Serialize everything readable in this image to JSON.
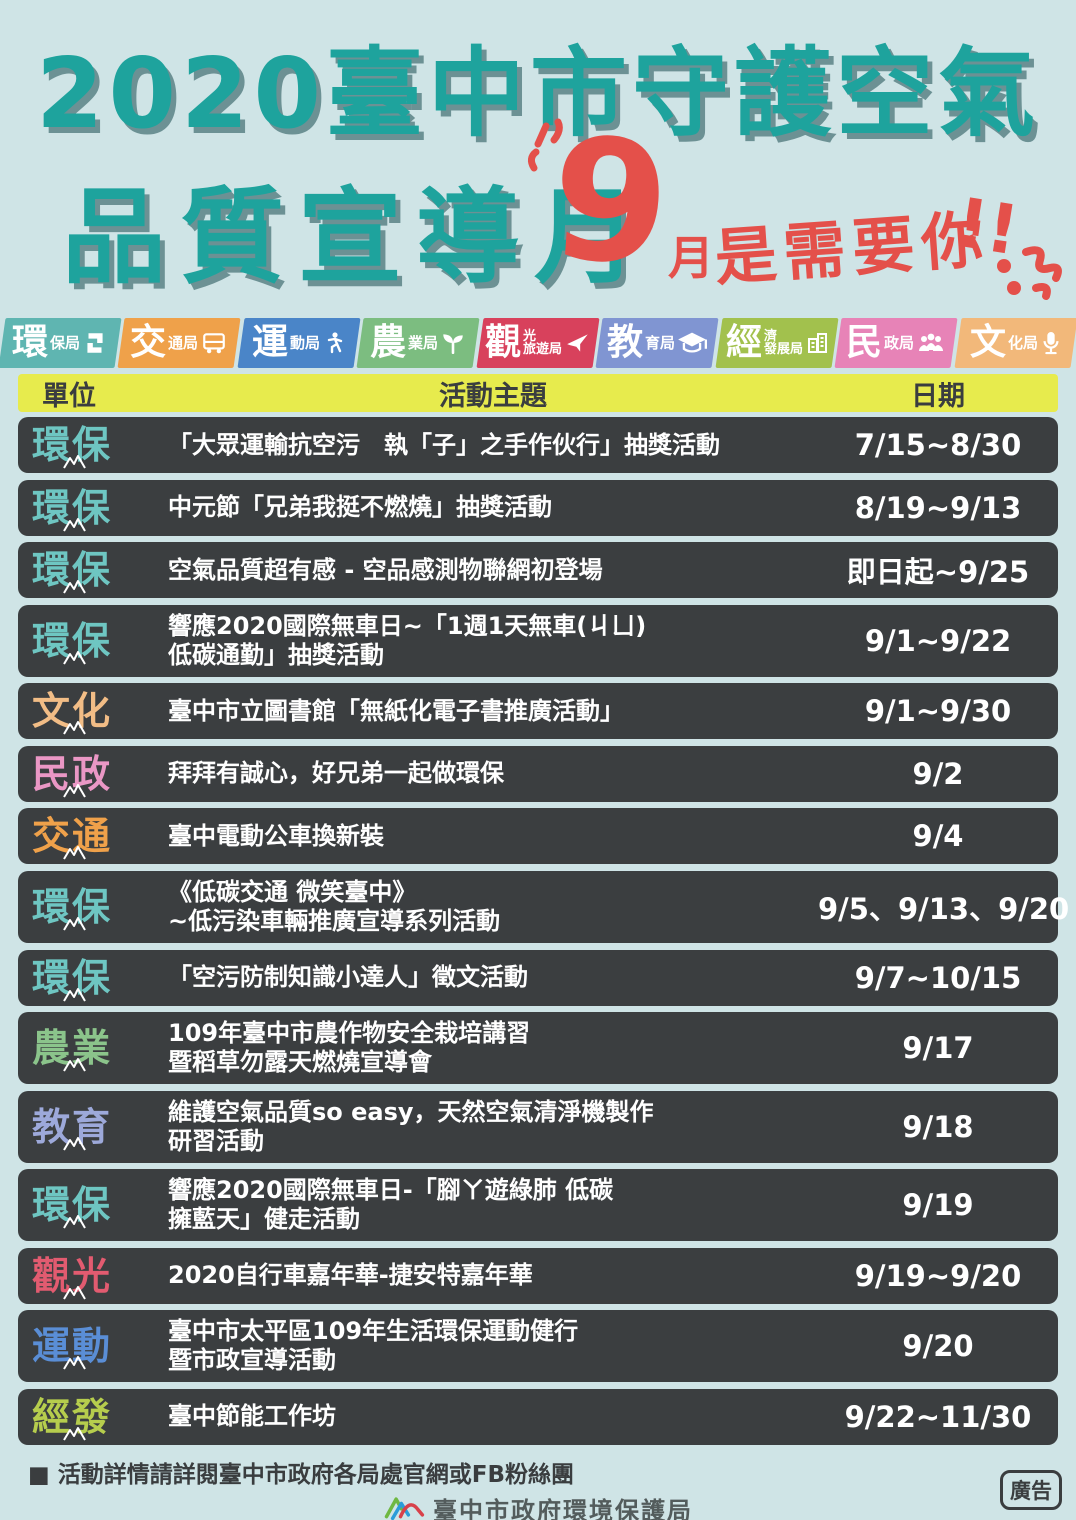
{
  "title": {
    "line1": "2020臺中市守護空氣",
    "line2": "品質宣導月",
    "highlight": {
      "number": "9",
      "month": "月",
      "text": "是需要你",
      "bang": "!!"
    },
    "teal_color": "#1ea39d",
    "red_color": "#e4504a"
  },
  "badges": [
    {
      "big": "環",
      "small": [
        "保局"
      ],
      "icon": "recycle-icon",
      "color": "#5fb5b1"
    },
    {
      "big": "交",
      "small": [
        "通局"
      ],
      "icon": "bus-icon",
      "color": "#efa14a"
    },
    {
      "big": "運",
      "small": [
        "動局"
      ],
      "icon": "runner-icon",
      "color": "#4a85c8"
    },
    {
      "big": "農",
      "small": [
        "業局"
      ],
      "icon": "sprout-icon",
      "color": "#7cbd80"
    },
    {
      "big": "觀",
      "small": [
        "光",
        "旅遊局"
      ],
      "icon": "plane-icon",
      "color": "#d8415c"
    },
    {
      "big": "教",
      "small": [
        "育局"
      ],
      "icon": "grad-cap-icon",
      "color": "#8095d2"
    },
    {
      "big": "經",
      "small": [
        "濟",
        "發展局"
      ],
      "icon": "building-icon",
      "color": "#a2c14d"
    },
    {
      "big": "民",
      "small": [
        "政局"
      ],
      "icon": "people-icon",
      "color": "#e783b7"
    },
    {
      "big": "文",
      "small": [
        "化局"
      ],
      "icon": "microphone-icon",
      "color": "#f2b87a"
    }
  ],
  "table": {
    "headers": {
      "unit": "單位",
      "topic": "活動主題",
      "date": "日期"
    },
    "unit_colors": {
      "環保": "#6ec6c2",
      "文化": "#f2bd86",
      "民政": "#ea97c5",
      "交通": "#efa14a",
      "農業": "#8bc48b",
      "教育": "#9da9da",
      "觀光": "#e25b70",
      "運動": "#5a8ed6",
      "經發": "#b6cd4d"
    },
    "rows": [
      {
        "unit": "環保",
        "topic": "「大眾運輸抗空污　執「子」之手作伙行」抽獎活動",
        "date": "7/15~8/30"
      },
      {
        "unit": "環保",
        "topic": "中元節「兄弟我挺不燃燒」抽獎活動",
        "date": "8/19~9/13"
      },
      {
        "unit": "環保",
        "topic": "空氣品質超有感 - 空品感測物聯網初登場",
        "date": "即日起~9/25"
      },
      {
        "unit": "環保",
        "topic": "響應2020國際無車日~「1週1天無車(ㄐㄩ)\n低碳通勤」抽獎活動",
        "date": "9/1~9/22"
      },
      {
        "unit": "文化",
        "topic": "臺中市立圖書館「無紙化電子書推廣活動」",
        "date": "9/1~9/30"
      },
      {
        "unit": "民政",
        "topic": "拜拜有誠心，好兄弟一起做環保",
        "date": "9/2"
      },
      {
        "unit": "交通",
        "topic": "臺中電動公車換新裝",
        "date": "9/4"
      },
      {
        "unit": "環保",
        "topic": "《低碳交通 微笑臺中》\n~低污染車輛推廣宣導系列活動",
        "date": "9/5、9/13、9/20"
      },
      {
        "unit": "環保",
        "topic": "「空污防制知識小達人」徵文活動",
        "date": "9/7~10/15"
      },
      {
        "unit": "農業",
        "topic": "109年臺中市農作物安全栽培講習\n暨稻草勿露天燃燒宣導會",
        "date": "9/17"
      },
      {
        "unit": "教育",
        "topic": "維護空氣品質so easy，天然空氣清淨機製作\n研習活動",
        "date": "9/18"
      },
      {
        "unit": "環保",
        "topic": "響應2020國際無車日-「腳ㄚ遊綠肺 低碳\n擁藍天」健走活動",
        "date": "9/19"
      },
      {
        "unit": "觀光",
        "topic": "2020自行車嘉年華-捷安特嘉年華",
        "date": "9/19~9/20"
      },
      {
        "unit": "運動",
        "topic": "臺中市太平區109年生活環保運動健行\n暨市政宣導活動",
        "date": "9/20"
      },
      {
        "unit": "經發",
        "topic": "臺中節能工作坊",
        "date": "9/22~11/30"
      }
    ]
  },
  "footer": {
    "note": "■ 活動詳情請詳閱臺中市政府各局處官網或FB粉絲團",
    "org": "臺中市政府環境保護局",
    "ad": "廣告"
  }
}
